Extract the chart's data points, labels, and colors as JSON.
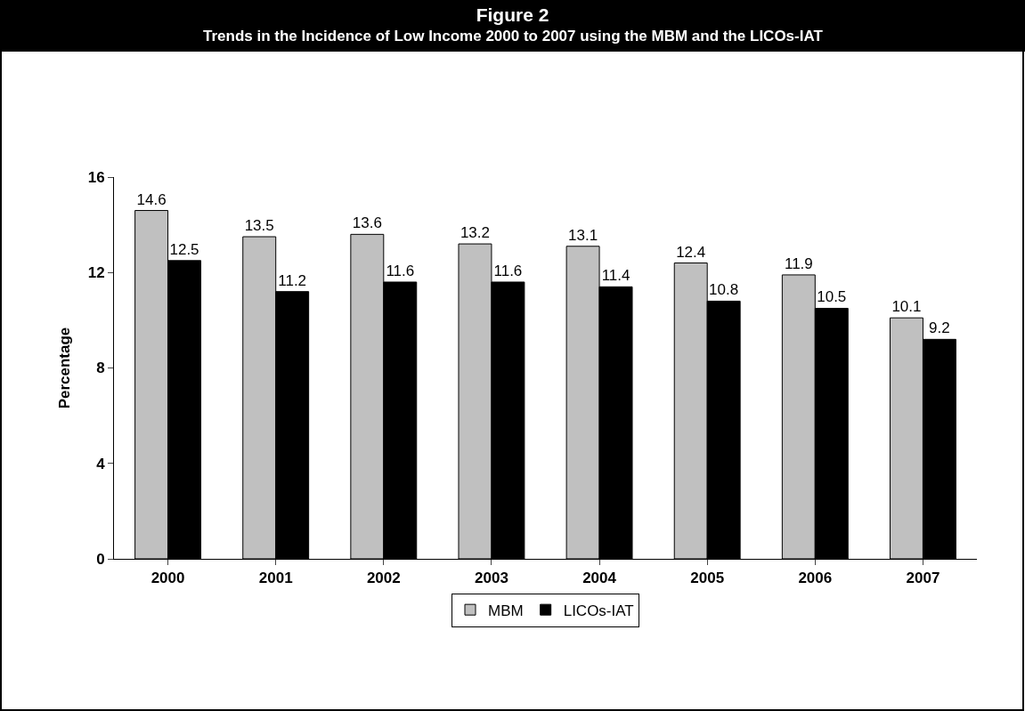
{
  "chart_data": {
    "type": "bar",
    "title": "Figure 2",
    "subtitle": "Trends in the Incidence of Low Income 2000 to 2007 using the MBM and the LICOs-IAT",
    "ylabel": "Percentage",
    "categories": [
      "2000",
      "2001",
      "2002",
      "2003",
      "2004",
      "2005",
      "2006",
      "2007"
    ],
    "series": [
      {
        "name": "MBM",
        "color": "#c0c0c0",
        "values": [
          14.6,
          13.5,
          13.6,
          13.2,
          13.1,
          12.4,
          11.9,
          10.1
        ]
      },
      {
        "name": "LICOs-IAT",
        "color": "#000000",
        "values": [
          12.5,
          11.2,
          11.6,
          11.6,
          11.4,
          10.8,
          10.5,
          9.2
        ]
      }
    ],
    "ylim": [
      0,
      16
    ],
    "yticks": [
      0,
      4,
      8,
      12,
      16
    ],
    "legend": "bottom",
    "data_labels": true
  }
}
